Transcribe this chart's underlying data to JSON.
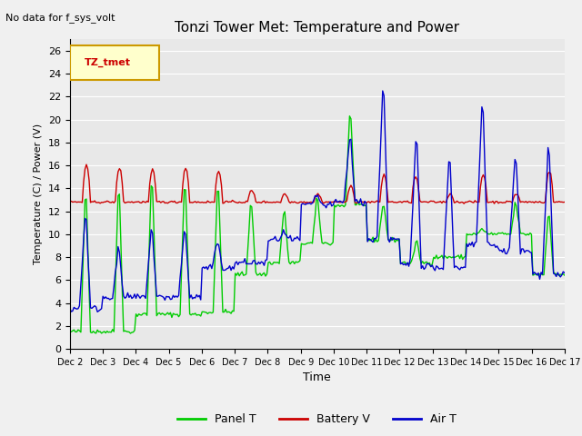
{
  "title": "Tonzi Tower Met: Temperature and Power",
  "top_left_text": "No data for f_sys_volt",
  "ylabel": "Temperature (C) / Power (V)",
  "xlabel": "Time",
  "ylim": [
    0,
    27
  ],
  "yticks": [
    0,
    2,
    4,
    6,
    8,
    10,
    12,
    14,
    16,
    18,
    20,
    22,
    24,
    26
  ],
  "xtick_labels": [
    "Dec 2",
    "Dec 3",
    "Dec 4",
    "Dec 5",
    "Dec 6",
    "Dec 7",
    "Dec 8",
    "Dec 9",
    "Dec 10",
    "Dec 11",
    "Dec 12",
    "Dec 13",
    "Dec 14",
    "Dec 15",
    "Dec 16",
    "Dec 17"
  ],
  "legend_box_label": "TZ_tmet",
  "legend_box_color": "#ffffcc",
  "legend_box_edge": "#cc9900",
  "background_color": "#e8e8e8",
  "line_green": "#00cc00",
  "line_red": "#cc0000",
  "line_blue": "#0000cc",
  "legend_labels": [
    "Panel T",
    "Battery V",
    "Air T"
  ]
}
